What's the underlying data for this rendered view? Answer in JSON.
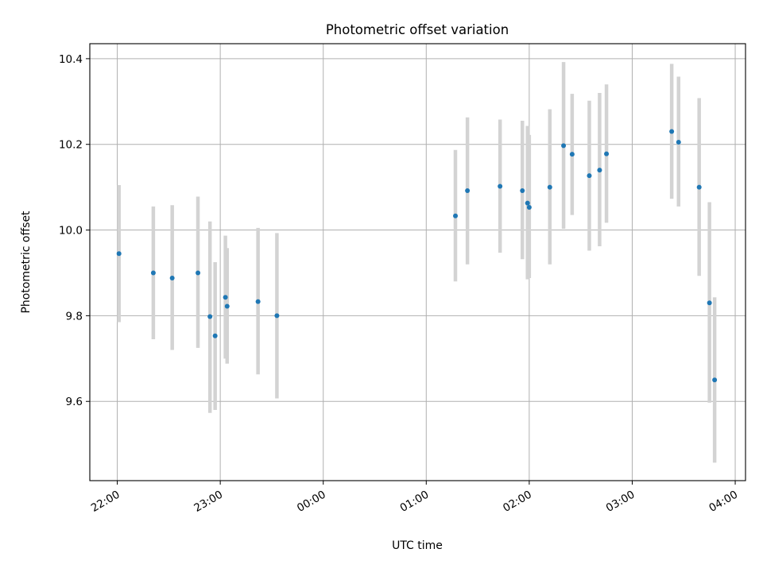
{
  "chart_data": {
    "type": "scatter",
    "title": "Photometric offset variation",
    "xlabel": "UTC time",
    "ylabel": "Photometric offset",
    "x_tick_labels": [
      "22:00",
      "23:00",
      "00:00",
      "01:00",
      "02:00",
      "03:00",
      "04:00"
    ],
    "y_tick_labels": [
      "9.6",
      "9.8",
      "10.0",
      "10.2",
      "10.4"
    ],
    "y_ticks": [
      9.6,
      9.8,
      10.0,
      10.2,
      10.4
    ],
    "xlim": [
      "21:44",
      "04:06"
    ],
    "ylim": [
      9.415,
      10.435
    ],
    "grid": true,
    "colors": {
      "point": "#1f77b4",
      "errorbar": "#d3d3d3",
      "grid": "#b0b0b0"
    },
    "points": [
      {
        "t": "22:01",
        "y": 9.945,
        "lo": 9.785,
        "hi": 10.105
      },
      {
        "t": "22:21",
        "y": 9.9,
        "lo": 9.745,
        "hi": 10.055
      },
      {
        "t": "22:32",
        "y": 9.888,
        "lo": 9.72,
        "hi": 10.058
      },
      {
        "t": "22:47",
        "y": 9.9,
        "lo": 9.725,
        "hi": 10.078
      },
      {
        "t": "22:54",
        "y": 9.798,
        "lo": 9.573,
        "hi": 10.02
      },
      {
        "t": "22:57",
        "y": 9.753,
        "lo": 9.58,
        "hi": 9.925
      },
      {
        "t": "23:03",
        "y": 9.843,
        "lo": 9.7,
        "hi": 9.987
      },
      {
        "t": "23:04",
        "y": 9.822,
        "lo": 9.688,
        "hi": 9.958
      },
      {
        "t": "23:22",
        "y": 9.833,
        "lo": 9.663,
        "hi": 10.005
      },
      {
        "t": "23:33",
        "y": 9.8,
        "lo": 9.607,
        "hi": 9.993
      },
      {
        "t": "01:17",
        "y": 10.033,
        "lo": 9.88,
        "hi": 10.187
      },
      {
        "t": "01:24",
        "y": 10.092,
        "lo": 9.92,
        "hi": 10.263
      },
      {
        "t": "01:43",
        "y": 10.102,
        "lo": 9.947,
        "hi": 10.258
      },
      {
        "t": "01:56",
        "y": 10.092,
        "lo": 9.932,
        "hi": 10.255
      },
      {
        "t": "01:59",
        "y": 10.063,
        "lo": 9.885,
        "hi": 10.243
      },
      {
        "t": "02:00",
        "y": 10.053,
        "lo": 9.888,
        "hi": 10.222
      },
      {
        "t": "02:12",
        "y": 10.1,
        "lo": 9.92,
        "hi": 10.282
      },
      {
        "t": "02:20",
        "y": 10.197,
        "lo": 10.003,
        "hi": 10.392
      },
      {
        "t": "02:25",
        "y": 10.177,
        "lo": 10.035,
        "hi": 10.318
      },
      {
        "t": "02:35",
        "y": 10.127,
        "lo": 9.952,
        "hi": 10.302
      },
      {
        "t": "02:41",
        "y": 10.14,
        "lo": 9.962,
        "hi": 10.32
      },
      {
        "t": "02:45",
        "y": 10.178,
        "lo": 10.017,
        "hi": 10.34
      },
      {
        "t": "03:23",
        "y": 10.23,
        "lo": 10.073,
        "hi": 10.388
      },
      {
        "t": "03:27",
        "y": 10.205,
        "lo": 10.055,
        "hi": 10.358
      },
      {
        "t": "03:39",
        "y": 10.1,
        "lo": 9.893,
        "hi": 10.308
      },
      {
        "t": "03:45",
        "y": 9.83,
        "lo": 9.597,
        "hi": 10.065
      },
      {
        "t": "03:48",
        "y": 9.65,
        "lo": 9.457,
        "hi": 9.843
      }
    ]
  }
}
